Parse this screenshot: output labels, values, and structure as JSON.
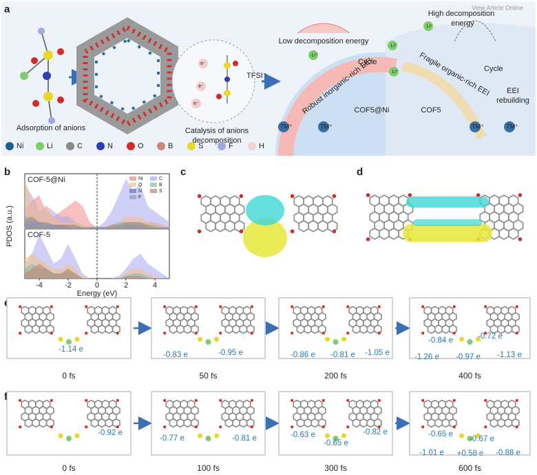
{
  "watermark": "View Article Online",
  "panel_labels": [
    "a",
    "b",
    "c",
    "d",
    "e",
    "f"
  ],
  "panel_a": {
    "adsorption": "Adsorption of anions",
    "catalysis": [
      "Catalysis of anions",
      "decomposition"
    ],
    "tfsi": "TFSI⁻",
    "electrons": [
      "e⁻",
      "e⁻",
      "e⁻"
    ],
    "low_energy": "Low decomposition energy",
    "high_energy": [
      "High decomposition",
      "energy"
    ],
    "cycle_left": "Cycle",
    "cycle_right": "Cycle",
    "robust_eei": "Robust inorganic-rich EEI",
    "fragile_eei": "Fragile organic-rich EEI",
    "cof_ni": "COF5@Ni",
    "cof": "COF5",
    "rebuilding": [
      "EEI",
      "rebuilding"
    ],
    "li_labels": [
      "Li⁺",
      "Li⁺",
      "Li⁺",
      "Li⁺"
    ],
    "tm_labels": [
      "TM⁺",
      "TM⁺",
      "TM⁺",
      "TM⁺"
    ],
    "atoms": [
      {
        "name": "Ni",
        "color": "#1f5f8f"
      },
      {
        "name": "Li",
        "color": "#7ccf6a"
      },
      {
        "name": "C",
        "color": "#8a8a8a"
      },
      {
        "name": "N",
        "color": "#2b3fb8"
      },
      {
        "name": "O",
        "color": "#d42a2a"
      },
      {
        "name": "B",
        "color": "#c98a7c"
      },
      {
        "name": "S",
        "color": "#e8d82a"
      },
      {
        "name": "F",
        "color": "#9fa8e0"
      },
      {
        "name": "H",
        "color": "#f2d4d4"
      }
    ]
  },
  "chart_data": [
    {
      "type": "area",
      "title": "COF-5@Ni",
      "ylabel": "PDOS (a.u.)",
      "legend": "upper right",
      "xlim": [
        -5,
        5
      ],
      "ylim": [
        0,
        1
      ],
      "vline": 0,
      "x": [
        -5,
        -4.5,
        -4,
        -3.5,
        -3,
        -2.5,
        -2,
        -1.5,
        -1,
        -0.5,
        0,
        0.5,
        1,
        1.5,
        2,
        2.5,
        3,
        3.5,
        4,
        4.5,
        5
      ],
      "series": [
        {
          "name": "Ni",
          "color": "#f08a8a",
          "values": [
            0.3,
            0.5,
            0.6,
            0.3,
            0.2,
            0.3,
            0.4,
            0.5,
            0.4,
            0.1,
            0,
            0,
            0,
            0.05,
            0.1,
            0.1,
            0.05,
            0.1,
            0.1,
            0.05,
            0
          ]
        },
        {
          "name": "C",
          "color": "#a8a8f0",
          "values": [
            0.8,
            0.6,
            0.3,
            0.4,
            0.3,
            0.2,
            0.2,
            0.1,
            0.05,
            0,
            0,
            0.1,
            0.3,
            0.6,
            0.9,
            0.7,
            0.8,
            0.4,
            0.3,
            0.2,
            0.1
          ]
        },
        {
          "name": "O",
          "color": "#f5c08a",
          "values": [
            0.9,
            0.5,
            0.3,
            0.4,
            0.2,
            0.1,
            0.1,
            0.1,
            0.05,
            0,
            0,
            0,
            0.05,
            0.1,
            0.2,
            0.2,
            0.2,
            0.1,
            0.1,
            0.05,
            0
          ]
        },
        {
          "name": "B",
          "color": "#7fbf9f",
          "values": [
            0.2,
            0.2,
            0.1,
            0.1,
            0.05,
            0.05,
            0.05,
            0.05,
            0,
            0,
            0,
            0,
            0.05,
            0.1,
            0.1,
            0.1,
            0.1,
            0.05,
            0.05,
            0,
            0
          ]
        },
        {
          "name": "N",
          "color": "#5a78d0",
          "values": [
            0.1,
            0.1,
            0.1,
            0.05,
            0.05,
            0.05,
            0,
            0,
            0,
            0,
            0,
            0,
            0,
            0,
            0.05,
            0.05,
            0.05,
            0,
            0,
            0,
            0
          ]
        },
        {
          "name": "S",
          "color": "#c08070",
          "values": [
            0.15,
            0.2,
            0.1,
            0.1,
            0.05,
            0.05,
            0.05,
            0.05,
            0,
            0,
            0,
            0,
            0.05,
            0.05,
            0.1,
            0.1,
            0.1,
            0.05,
            0,
            0,
            0
          ]
        },
        {
          "name": "F",
          "color": "#8fa0c0",
          "values": [
            0.1,
            0.15,
            0.1,
            0.05,
            0.05,
            0,
            0,
            0,
            0,
            0,
            0,
            0,
            0,
            0.05,
            0.05,
            0.05,
            0.05,
            0,
            0,
            0,
            0
          ]
        }
      ]
    },
    {
      "type": "area",
      "title": "COF-5",
      "xlabel": "Energy (eV)",
      "xlim": [
        -5,
        5
      ],
      "ylim": [
        0,
        1
      ],
      "vline": 0,
      "xticks": [
        -4,
        -2,
        0,
        2,
        4
      ],
      "x": [
        -5,
        -4.5,
        -4,
        -3.5,
        -3,
        -2.5,
        -2,
        -1.5,
        -1,
        -0.5,
        0,
        0.5,
        1,
        1.5,
        2,
        2.5,
        3,
        3.5,
        4,
        4.5,
        5
      ],
      "series": [
        {
          "color": "#a8a8f0",
          "values": [
            0.3,
            0.5,
            0.9,
            0.6,
            0.3,
            0.4,
            0.7,
            0.4,
            0.1,
            0,
            0,
            0,
            0,
            0.05,
            0.2,
            0.4,
            0.5,
            0.3,
            0.2,
            0.1,
            0
          ]
        },
        {
          "color": "#f5c08a",
          "values": [
            0.4,
            0.5,
            0.4,
            0.3,
            0.2,
            0.2,
            0.3,
            0.2,
            0.05,
            0,
            0,
            0,
            0,
            0,
            0.1,
            0.2,
            0.2,
            0.1,
            0.05,
            0,
            0
          ]
        },
        {
          "color": "#7fbf9f",
          "values": [
            0.2,
            0.3,
            0.2,
            0.2,
            0.1,
            0.1,
            0.15,
            0.1,
            0,
            0,
            0,
            0,
            0,
            0,
            0.05,
            0.1,
            0.1,
            0.05,
            0,
            0,
            0
          ]
        },
        {
          "color": "#c08070",
          "values": [
            0.1,
            0.2,
            0.3,
            0.2,
            0.1,
            0.1,
            0.2,
            0.1,
            0,
            0,
            0,
            0,
            0,
            0,
            0.05,
            0.05,
            0.05,
            0,
            0,
            0,
            0
          ]
        }
      ]
    }
  ],
  "panel_e": [
    {
      "time": "0 fs",
      "charges": [
        "-1.14 e"
      ]
    },
    {
      "time": "50 fs",
      "charges": [
        "-0.83 e",
        "-0.95 e"
      ]
    },
    {
      "time": "200 fs",
      "charges": [
        "-0.86 e",
        "-0.81 e",
        "-1.05 e"
      ]
    },
    {
      "time": "400 fs",
      "charges": [
        "-0.84 e",
        "-0.72 e",
        "-1.26 e",
        "-0.97 e",
        "-1.13 e"
      ]
    }
  ],
  "panel_f": [
    {
      "time": "0 fs",
      "charges": [
        "-0.92 e"
      ]
    },
    {
      "time": "100 fs",
      "charges": [
        "-0.77 e",
        "-0.81 e"
      ]
    },
    {
      "time": "300 fs",
      "charges": [
        "-0.63 e",
        "-0.65 e",
        "-0.82 e"
      ]
    },
    {
      "time": "600 fs",
      "charges": [
        "-0.65 e",
        "-0.67 e",
        "-1.01 e",
        "+0.58 e",
        "-0.88 e"
      ]
    }
  ]
}
